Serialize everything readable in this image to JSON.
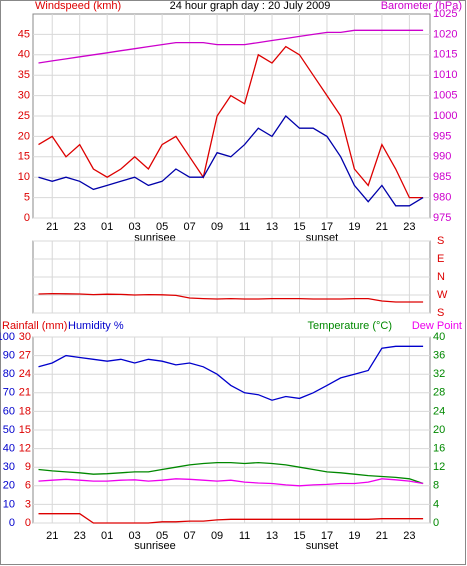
{
  "chart_data": [
    {
      "type": "line",
      "title": "24 hour graph day : 20 July 2009",
      "ylabel": "Windspeed (kmh)",
      "y2label": "Barometer (hPa)",
      "annotations": [
        "sunrisee",
        "sunset"
      ],
      "x": [
        -1,
        0,
        1,
        2,
        3,
        4,
        5,
        6,
        7,
        8,
        9,
        10,
        11,
        12,
        13,
        14,
        15,
        16,
        17,
        18,
        19,
        20,
        21,
        22,
        23,
        24,
        25,
        26,
        27
      ],
      "xlim": [
        -1.4,
        27.5
      ],
      "xticks": [
        {
          "value": 0,
          "label": "21"
        },
        {
          "value": 2,
          "label": "23"
        },
        {
          "value": 4,
          "label": "01"
        },
        {
          "value": 6,
          "label": "03"
        },
        {
          "value": 8,
          "label": "05"
        },
        {
          "value": 10,
          "label": "07"
        },
        {
          "value": 12,
          "label": "09"
        },
        {
          "value": 14,
          "label": "11"
        },
        {
          "value": 16,
          "label": "13"
        },
        {
          "value": 18,
          "label": "15"
        },
        {
          "value": 20,
          "label": "17"
        },
        {
          "value": 22,
          "label": "19"
        },
        {
          "value": 24,
          "label": "21"
        },
        {
          "value": 26,
          "label": "23"
        }
      ],
      "ylim": [
        0,
        50
      ],
      "yticks": [
        0,
        5,
        10,
        15,
        20,
        25,
        30,
        35,
        40,
        45
      ],
      "y2lim": [
        975,
        1025
      ],
      "y2ticks": [
        975,
        980,
        985,
        990,
        995,
        1000,
        1005,
        1010,
        1015,
        1020,
        1025
      ],
      "grid": true,
      "series": [
        {
          "color": "#dd0000",
          "values": [
            18,
            20,
            15,
            18,
            12,
            10,
            12,
            15,
            12,
            18,
            20,
            15,
            10,
            25,
            30,
            28,
            40,
            38,
            42,
            40,
            35,
            30,
            25,
            12,
            8,
            18,
            12,
            5,
            5
          ]
        },
        {
          "color": "#0000aa",
          "values": [
            10,
            9,
            10,
            9,
            7,
            8,
            9,
            10,
            8,
            9,
            12,
            10,
            10,
            16,
            15,
            18,
            22,
            20,
            25,
            22,
            22,
            20,
            15,
            8,
            4,
            8,
            3,
            3,
            5
          ]
        },
        {
          "color": "#cc00cc",
          "axis": "y2",
          "values": [
            1013,
            1013.5,
            1014,
            1014.5,
            1015,
            1015.5,
            1016,
            1016.5,
            1017,
            1017.5,
            1018,
            1018,
            1018,
            1017.5,
            1017.5,
            1017.5,
            1018,
            1018.5,
            1019,
            1019.5,
            1020,
            1020.5,
            1020.5,
            1021,
            1021,
            1021,
            1021,
            1021,
            1021
          ]
        }
      ]
    },
    {
      "type": "line",
      "x": [
        -1,
        0,
        1,
        2,
        3,
        4,
        5,
        6,
        7,
        8,
        9,
        10,
        11,
        12,
        13,
        14,
        15,
        16,
        17,
        18,
        19,
        20,
        21,
        22,
        23,
        24,
        25,
        26,
        27
      ],
      "xlim": [
        -1.4,
        27.5
      ],
      "xticks": [
        0,
        2,
        4,
        6,
        8,
        10,
        12,
        14,
        16,
        18,
        20,
        22,
        24,
        26
      ],
      "ylim": [
        0,
        360
      ],
      "yticks": [
        {
          "value": 360,
          "label": "S"
        },
        {
          "value": 270,
          "label": "E"
        },
        {
          "value": 180,
          "label": "N"
        },
        {
          "value": 90,
          "label": "W"
        },
        {
          "value": 0,
          "label": "S"
        }
      ],
      "grid": true,
      "series": [
        {
          "color": "#dd0000",
          "values": [
            95,
            97,
            96,
            95,
            92,
            94,
            93,
            90,
            92,
            91,
            88,
            75,
            72,
            70,
            72,
            70,
            70,
            72,
            72,
            72,
            70,
            70,
            70,
            72,
            72,
            60,
            55,
            55,
            55
          ]
        }
      ]
    },
    {
      "type": "line",
      "ylabel": "Humidity %",
      "y3label": "Rainfall (mm)",
      "y2label": "Temperature (°C)",
      "annotations": [
        "sunrisee",
        "sunset"
      ],
      "x": [
        -1,
        0,
        1,
        2,
        3,
        4,
        5,
        6,
        7,
        8,
        9,
        10,
        11,
        12,
        13,
        14,
        15,
        16,
        17,
        18,
        19,
        20,
        21,
        22,
        23,
        24,
        25,
        26,
        27
      ],
      "xlim": [
        -1.4,
        27.5
      ],
      "xticks": [
        {
          "value": 0,
          "label": "21"
        },
        {
          "value": 2,
          "label": "23"
        },
        {
          "value": 4,
          "label": "01"
        },
        {
          "value": 6,
          "label": "03"
        },
        {
          "value": 8,
          "label": "05"
        },
        {
          "value": 10,
          "label": "07"
        },
        {
          "value": 12,
          "label": "09"
        },
        {
          "value": 14,
          "label": "11"
        },
        {
          "value": 16,
          "label": "13"
        },
        {
          "value": 18,
          "label": "15"
        },
        {
          "value": 20,
          "label": "17"
        },
        {
          "value": 22,
          "label": "19"
        },
        {
          "value": 24,
          "label": "21"
        },
        {
          "value": 26,
          "label": "23"
        }
      ],
      "ylim": [
        0,
        100
      ],
      "yticks": [
        0,
        10,
        20,
        30,
        40,
        50,
        60,
        70,
        80,
        90,
        100
      ],
      "y3lim": [
        0,
        30
      ],
      "y3ticks": [
        0,
        3,
        6,
        9,
        12,
        15,
        18,
        21,
        24,
        27,
        30
      ],
      "y2lim": [
        0,
        40
      ],
      "y2ticks": [
        0,
        4,
        8,
        12,
        16,
        20,
        24,
        28,
        32,
        36,
        40
      ],
      "grid": true,
      "series": [
        {
          "color": "#0000cc",
          "values": [
            84,
            86,
            90,
            89,
            88,
            87,
            88,
            86,
            88,
            87,
            85,
            86,
            84,
            80,
            74,
            70,
            69,
            66,
            68,
            67,
            70,
            74,
            78,
            80,
            82,
            94,
            95,
            95,
            95
          ]
        },
        {
          "color": "#008800",
          "axis": "y2",
          "values": [
            11.5,
            11.2,
            11,
            10.8,
            10.5,
            10.6,
            10.8,
            11,
            11,
            11.5,
            12,
            12.5,
            12.8,
            13,
            13,
            12.8,
            13,
            12.8,
            12.5,
            12,
            11.5,
            11,
            10.8,
            10.5,
            10.2,
            10,
            9.8,
            9.5,
            8.5
          ]
        },
        {
          "name": "Dew Point",
          "color": "#ee00ee",
          "axis": "y2",
          "values": [
            9,
            9.2,
            9.4,
            9.2,
            9,
            9,
            9.2,
            9.3,
            9,
            9.2,
            9.5,
            9.4,
            9.2,
            9,
            9.2,
            8.8,
            8.6,
            8.5,
            8.2,
            8,
            8.2,
            8.3,
            8.5,
            8.5,
            8.8,
            9.5,
            9.3,
            9,
            8.5
          ]
        },
        {
          "color": "#dd0000",
          "axis": "y3",
          "values": [
            1.5,
            1.5,
            1.5,
            1.5,
            0,
            0,
            0,
            0,
            0,
            0.2,
            0.2,
            0.3,
            0.3,
            0.5,
            0.6,
            0.6,
            0.6,
            0.6,
            0.6,
            0.6,
            0.6,
            0.6,
            0.6,
            0.6,
            0.6,
            0.7,
            0.7,
            0.7,
            0.7
          ]
        }
      ]
    }
  ]
}
